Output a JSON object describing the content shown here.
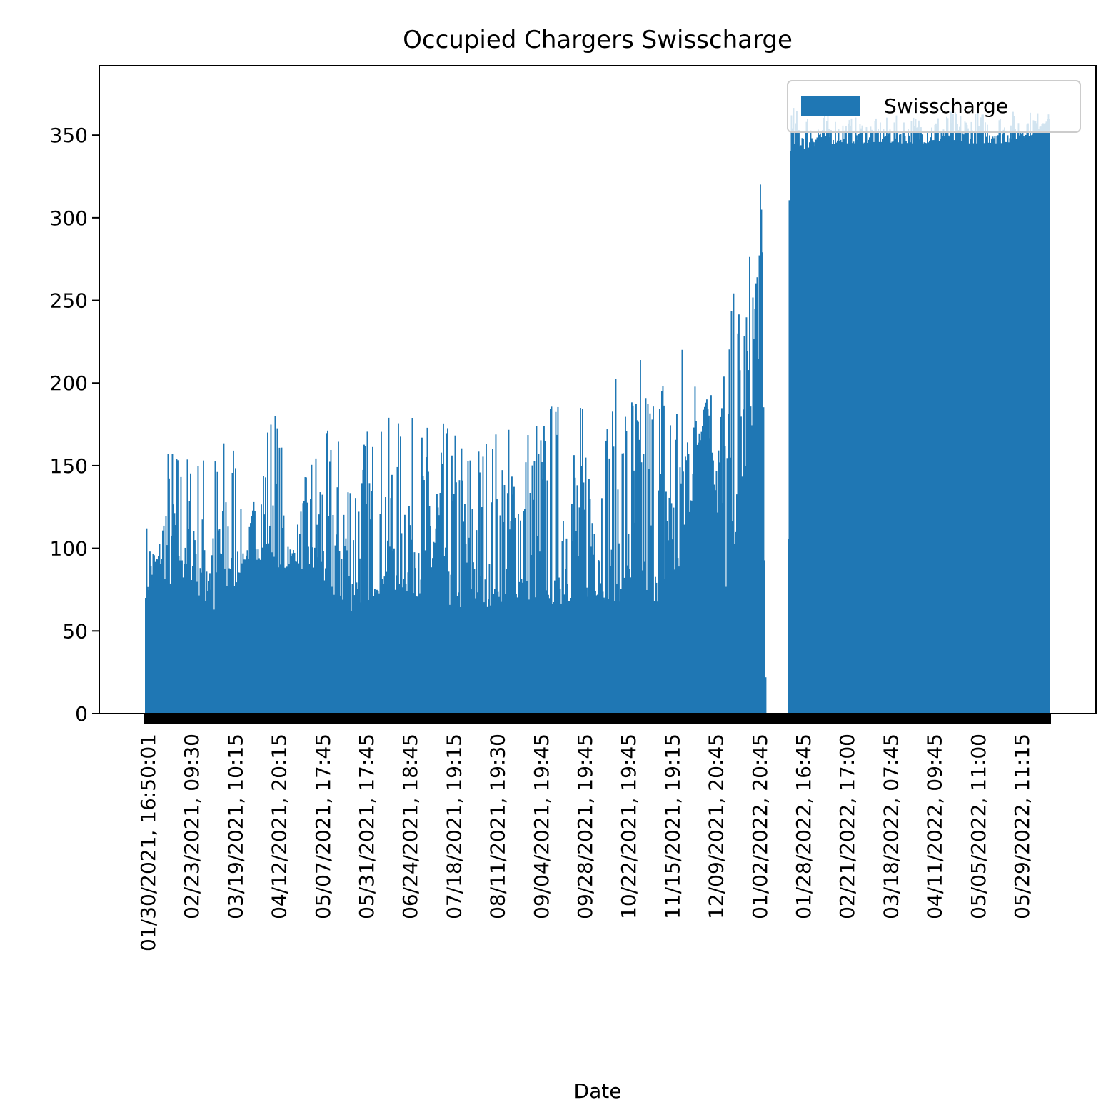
{
  "chart_data": {
    "type": "bar",
    "title": "Occupied Chargers Swisscharge",
    "xlabel": "Date",
    "ylabel": "",
    "ylim": [
      0,
      392
    ],
    "yticks": [
      0,
      50,
      100,
      150,
      200,
      250,
      300,
      350
    ],
    "legend": {
      "position": "top-right",
      "entries": [
        "Swisscharge"
      ]
    },
    "grid": false,
    "colors": {
      "bar": "#1f77b4",
      "axis": "#000000"
    },
    "x_tick_labels": [
      "01/30/2021, 16:50:01",
      "02/23/2021, 09:30",
      "03/19/2021, 10:15",
      "04/12/2021, 20:15",
      "05/07/2021, 17:45",
      "05/31/2021, 17:45",
      "06/24/2021, 18:45",
      "07/18/2021, 19:15",
      "08/11/2021, 19:30",
      "09/04/2021, 19:45",
      "09/28/2021, 19:45",
      "10/22/2021, 19:45",
      "11/15/2021, 19:15",
      "12/09/2021, 20:45",
      "01/02/2022, 20:45",
      "01/28/2022, 16:45",
      "02/21/2022, 17:00",
      "03/18/2022, 07:45",
      "04/11/2022, 09:45",
      "05/05/2022, 11:00",
      "05/29/2022, 11:15"
    ],
    "series": [
      {
        "name": "Swisscharge",
        "profile_by_date": [
          {
            "date": "01/30/2021",
            "min": 70,
            "max": 118
          },
          {
            "date": "02/04/2021",
            "min": 93,
            "max": 93
          },
          {
            "date": "02/10/2021",
            "min": 75,
            "max": 170
          },
          {
            "date": "02/23/2021",
            "min": 80,
            "max": 160
          },
          {
            "date": "03/08/2021",
            "min": 50,
            "max": 170
          },
          {
            "date": "03/19/2021",
            "min": 75,
            "max": 180
          },
          {
            "date": "03/24/2021",
            "min": 93,
            "max": 93
          },
          {
            "date": "04/05/2021",
            "min": 93,
            "max": 185
          },
          {
            "date": "04/10/2021",
            "min": 95,
            "max": 195
          },
          {
            "date": "04/15/2021",
            "min": 78,
            "max": 155
          },
          {
            "date": "04/19/2021",
            "min": 95,
            "max": 95
          },
          {
            "date": "05/01/2021",
            "min": 80,
            "max": 170
          },
          {
            "date": "05/20/2021",
            "min": 60,
            "max": 175
          },
          {
            "date": "06/10/2021",
            "min": 75,
            "max": 180
          },
          {
            "date": "07/01/2021",
            "min": 70,
            "max": 180
          },
          {
            "date": "07/25/2021",
            "min": 60,
            "max": 175
          },
          {
            "date": "08/20/2021",
            "min": 70,
            "max": 180
          },
          {
            "date": "09/10/2021",
            "min": 65,
            "max": 195
          },
          {
            "date": "10/05/2021",
            "min": 70,
            "max": 190
          },
          {
            "date": "10/28/2021",
            "min": 65,
            "max": 220
          },
          {
            "date": "11/20/2021",
            "min": 70,
            "max": 240
          },
          {
            "date": "12/05/2021",
            "min": 191,
            "max": 191
          },
          {
            "date": "12/15/2021",
            "min": 65,
            "max": 240
          },
          {
            "date": "12/28/2021",
            "min": 150,
            "max": 280
          },
          {
            "date": "01/05/2022",
            "min": 240,
            "max": 330
          },
          {
            "date": "01/07/2022",
            "min": 0,
            "max": 0
          },
          {
            "date": "01/19/2022",
            "min": 0,
            "max": 0
          },
          {
            "date": "01/20/2022",
            "min": 340,
            "max": 368
          },
          {
            "date": "02/15/2022",
            "min": 345,
            "max": 362
          },
          {
            "date": "03/10/2022",
            "min": 345,
            "max": 360
          },
          {
            "date": "03/20/2022",
            "min": 345,
            "max": 362
          },
          {
            "date": "04/20/2022",
            "min": 345,
            "max": 365
          },
          {
            "date": "05/20/2022",
            "min": 345,
            "max": 365
          },
          {
            "date": "06/04/2022",
            "min": 350,
            "max": 365
          },
          {
            "date": "06/15/2022",
            "min": 362,
            "max": 362
          }
        ]
      }
    ]
  }
}
